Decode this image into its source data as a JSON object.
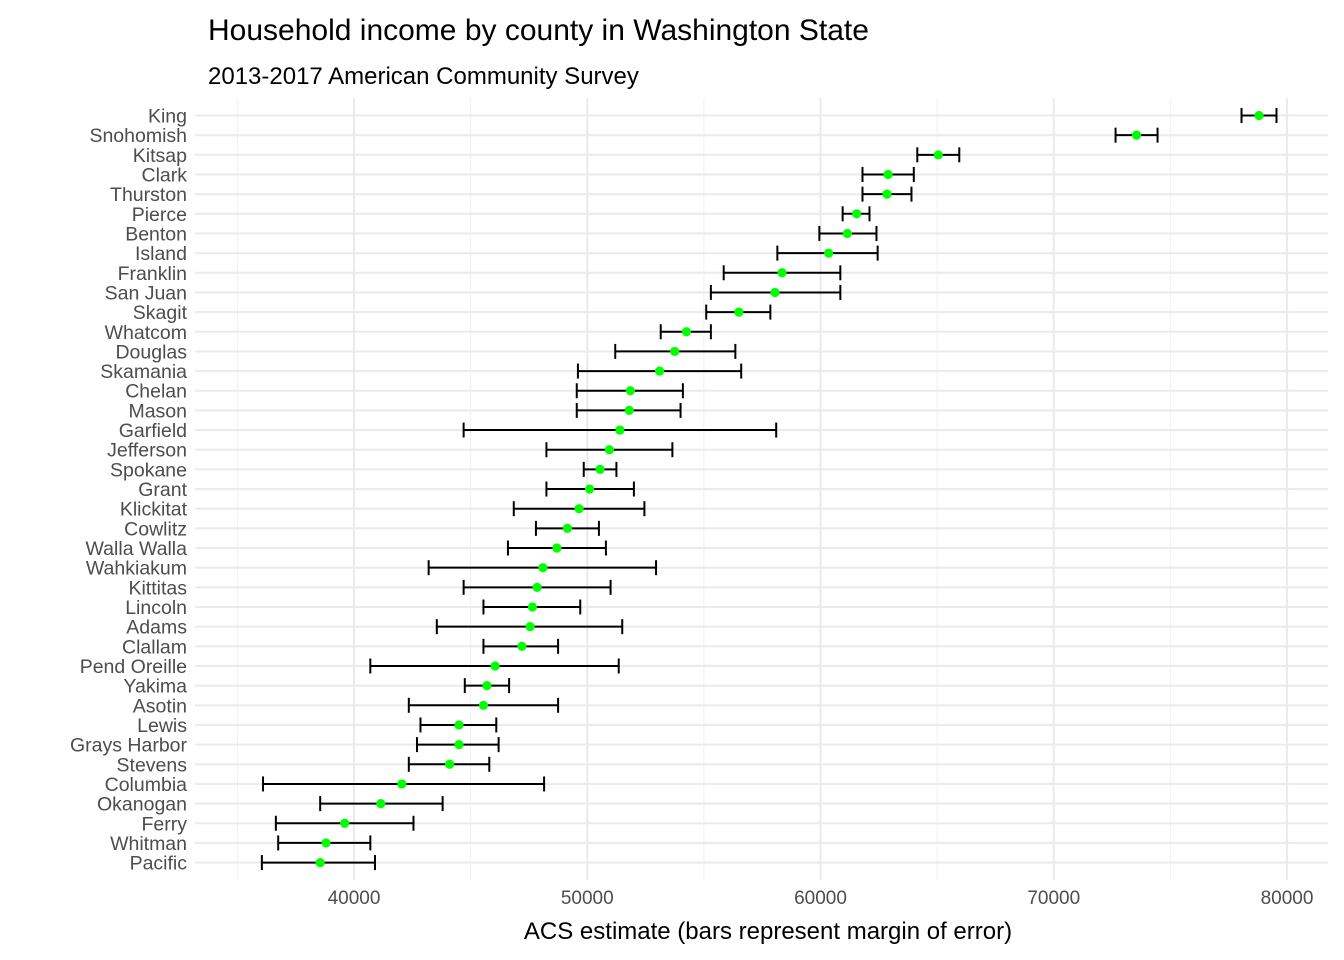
{
  "chart_data": {
    "type": "scatter",
    "title": "Household income by county in Washington State",
    "subtitle": "2013-2017 American Community Survey",
    "xlabel": "ACS estimate (bars represent margin of error)",
    "ylabel": "",
    "xlim": [
      34100,
      80200
    ],
    "xticks": [
      40000,
      50000,
      60000,
      70000,
      80000
    ],
    "grid": true,
    "legend": "none",
    "colors": {
      "point": "#00ff00",
      "errorbar": "#000000",
      "grid_major": "#ebebeb",
      "grid_minor": "#f2f2f2"
    },
    "points": [
      {
        "county": "King",
        "estimate": 78800,
        "lower": 78050,
        "upper": 79550
      },
      {
        "county": "Snohomish",
        "estimate": 73550,
        "lower": 72650,
        "upper": 74450
      },
      {
        "county": "Kitsap",
        "estimate": 65050,
        "lower": 64150,
        "upper": 65950
      },
      {
        "county": "Clark",
        "estimate": 62900,
        "lower": 61800,
        "upper": 64000
      },
      {
        "county": "Thurston",
        "estimate": 62850,
        "lower": 61800,
        "upper": 63900
      },
      {
        "county": "Pierce",
        "estimate": 61550,
        "lower": 60950,
        "upper": 62100
      },
      {
        "county": "Benton",
        "estimate": 61150,
        "lower": 59950,
        "upper": 62400
      },
      {
        "county": "Island",
        "estimate": 60350,
        "lower": 58150,
        "upper": 62450
      },
      {
        "county": "Franklin",
        "estimate": 58350,
        "lower": 55850,
        "upper": 60850
      },
      {
        "county": "San Juan",
        "estimate": 58050,
        "lower": 55300,
        "upper": 60850
      },
      {
        "county": "Skagit",
        "estimate": 56500,
        "lower": 55100,
        "upper": 57850
      },
      {
        "county": "Whatcom",
        "estimate": 54250,
        "lower": 53150,
        "upper": 55300
      },
      {
        "county": "Douglas",
        "estimate": 53750,
        "lower": 51200,
        "upper": 56350
      },
      {
        "county": "Skamania",
        "estimate": 53100,
        "lower": 49600,
        "upper": 56600
      },
      {
        "county": "Chelan",
        "estimate": 51850,
        "lower": 49550,
        "upper": 54100
      },
      {
        "county": "Mason",
        "estimate": 51800,
        "lower": 49550,
        "upper": 54000
      },
      {
        "county": "Garfield",
        "estimate": 51400,
        "lower": 44700,
        "upper": 58100
      },
      {
        "county": "Jefferson",
        "estimate": 50950,
        "lower": 48250,
        "upper": 53650
      },
      {
        "county": "Spokane",
        "estimate": 50550,
        "lower": 49850,
        "upper": 51250
      },
      {
        "county": "Grant",
        "estimate": 50100,
        "lower": 48250,
        "upper": 52000
      },
      {
        "county": "Klickitat",
        "estimate": 49650,
        "lower": 46850,
        "upper": 52450
      },
      {
        "county": "Cowlitz",
        "estimate": 49150,
        "lower": 47800,
        "upper": 50500
      },
      {
        "county": "Walla Walla",
        "estimate": 48700,
        "lower": 46600,
        "upper": 50800
      },
      {
        "county": "Wahkiakum",
        "estimate": 48100,
        "lower": 43200,
        "upper": 52950
      },
      {
        "county": "Kittitas",
        "estimate": 47850,
        "lower": 44700,
        "upper": 51000
      },
      {
        "county": "Lincoln",
        "estimate": 47650,
        "lower": 45550,
        "upper": 49700
      },
      {
        "county": "Adams",
        "estimate": 47550,
        "lower": 43550,
        "upper": 51500
      },
      {
        "county": "Clallam",
        "estimate": 47200,
        "lower": 45550,
        "upper": 48750
      },
      {
        "county": "Pend Oreille",
        "estimate": 46050,
        "lower": 40700,
        "upper": 51350
      },
      {
        "county": "Yakima",
        "estimate": 45700,
        "lower": 44750,
        "upper": 46650
      },
      {
        "county": "Asotin",
        "estimate": 45550,
        "lower": 42350,
        "upper": 48750
      },
      {
        "county": "Lewis",
        "estimate": 44500,
        "lower": 42850,
        "upper": 46100
      },
      {
        "county": "Grays Harbor",
        "estimate": 44500,
        "lower": 42700,
        "upper": 46200
      },
      {
        "county": "Stevens",
        "estimate": 44100,
        "lower": 42350,
        "upper": 45800
      },
      {
        "county": "Columbia",
        "estimate": 42050,
        "lower": 36100,
        "upper": 48150
      },
      {
        "county": "Okanogan",
        "estimate": 41150,
        "lower": 38550,
        "upper": 43800
      },
      {
        "county": "Ferry",
        "estimate": 39600,
        "lower": 36650,
        "upper": 42550
      },
      {
        "county": "Whitman",
        "estimate": 38800,
        "lower": 36750,
        "upper": 40700
      },
      {
        "county": "Pacific",
        "estimate": 38550,
        "lower": 36050,
        "upper": 40900
      }
    ]
  }
}
